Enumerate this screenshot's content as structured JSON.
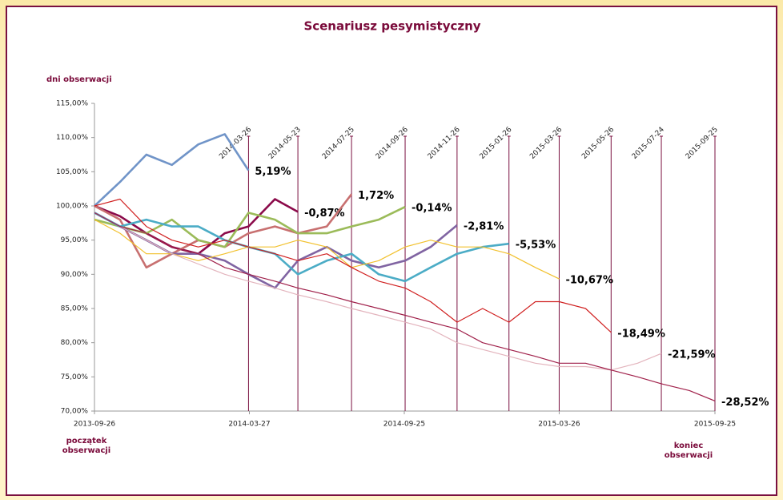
{
  "chart_data": {
    "type": "line",
    "title": "Scenariusz pesymistyczny",
    "y_axis_label": "dni obserwacji",
    "start_label": [
      "początek",
      "obserwacji"
    ],
    "end_label": [
      "koniec",
      "obserwacji"
    ],
    "xlim": [
      "2013-09-26",
      "2015-09-25"
    ],
    "xticks": [
      "2013-09-26",
      "2014-03-27",
      "2014-09-25",
      "2015-03-26",
      "2015-09-25"
    ],
    "ylim": [
      70,
      115
    ],
    "yticks": [
      {
        "value": 70,
        "label": "70,00%"
      },
      {
        "value": 75,
        "label": "75,00%"
      },
      {
        "value": 80,
        "label": "80,00%"
      },
      {
        "value": 85,
        "label": "85,00%"
      },
      {
        "value": 90,
        "label": "90,00%"
      },
      {
        "value": 95,
        "label": "95,00%"
      },
      {
        "value": 100,
        "label": "100,00%"
      },
      {
        "value": 105,
        "label": "105,00%"
      },
      {
        "value": 110,
        "label": "110,00%"
      },
      {
        "value": 115,
        "label": "115,00%"
      }
    ],
    "grid": false,
    "markers": [
      "2014-03-26",
      "2014-05-23",
      "2014-07-25",
      "2014-09-26",
      "2014-11-26",
      "2015-01-26",
      "2015-03-26",
      "2015-05-26",
      "2015-07-24",
      "2015-09-25"
    ],
    "x": [
      "2013-09-26",
      "2013-10-26",
      "2013-11-26",
      "2013-12-26",
      "2014-01-26",
      "2014-02-26",
      "2014-03-26",
      "2014-04-26",
      "2014-05-23",
      "2014-06-26",
      "2014-07-25",
      "2014-08-26",
      "2014-09-26",
      "2014-10-26",
      "2014-11-26",
      "2014-12-26",
      "2015-01-26",
      "2015-02-26",
      "2015-03-26",
      "2015-04-26",
      "2015-05-26",
      "2015-06-26",
      "2015-07-24",
      "2015-08-26",
      "2015-09-25"
    ],
    "series": [
      {
        "color": "#7094c8",
        "result": {
          "value": 5.19,
          "label": "5,19%"
        },
        "values": [
          100,
          103.5,
          107.5,
          106,
          109,
          110.5,
          105.19,
          null,
          null,
          null,
          null,
          null,
          null,
          null,
          null,
          null,
          null,
          null,
          null,
          null,
          null,
          null,
          null,
          null,
          null
        ]
      },
      {
        "color": "#8b0a4a",
        "result": {
          "value": -0.87,
          "label": "-0,87%"
        },
        "values": [
          100,
          98.5,
          96,
          94,
          93,
          96,
          97,
          101,
          99.13,
          null,
          null,
          null,
          null,
          null,
          null,
          null,
          null,
          null,
          null,
          null,
          null,
          null,
          null,
          null,
          null
        ]
      },
      {
        "color": "#c87070",
        "result": {
          "value": 1.72,
          "label": "1,72%"
        },
        "values": [
          100,
          98,
          91,
          93,
          95,
          94,
          96,
          97,
          96,
          97,
          101.72,
          null,
          null,
          null,
          null,
          null,
          null,
          null,
          null,
          null,
          null,
          null,
          null,
          null,
          null
        ]
      },
      {
        "color": "#9bbb59",
        "result": {
          "value": -0.14,
          "label": "-0,14%"
        },
        "values": [
          98,
          97,
          96,
          98,
          95,
          94,
          99,
          98,
          96,
          96,
          97,
          98,
          99.86,
          null,
          null,
          null,
          null,
          null,
          null,
          null,
          null,
          null,
          null,
          null,
          null
        ]
      },
      {
        "color": "#8064a2",
        "result": {
          "value": -2.81,
          "label": "-2,81%"
        },
        "values": [
          99,
          97,
          95,
          93,
          93,
          92,
          90,
          88,
          92,
          94,
          92,
          91,
          92,
          94,
          97.19,
          null,
          null,
          null,
          null,
          null,
          null,
          null,
          null,
          null,
          null
        ]
      },
      {
        "color": "#4bacc6",
        "result": {
          "value": -5.53,
          "label": "-5,53%"
        },
        "values": [
          99,
          97,
          98,
          97,
          97,
          95,
          94,
          93,
          90,
          92,
          93,
          90,
          89,
          91,
          93,
          94,
          94.47,
          null,
          null,
          null,
          null,
          null,
          null,
          null,
          null
        ]
      },
      {
        "color": "#f2c12e",
        "result": {
          "value": -10.67,
          "label": "-10,67%"
        },
        "values": [
          98,
          96,
          93,
          93,
          92,
          93,
          94,
          94,
          95,
          94,
          91,
          92,
          94,
          95,
          94,
          94,
          93,
          91,
          89.33,
          null,
          null,
          null,
          null,
          null,
          null
        ]
      },
      {
        "color": "#d02020",
        "result": {
          "value": -18.49,
          "label": "-18,49%"
        },
        "values": [
          100,
          101,
          97,
          95,
          94,
          95,
          94,
          93,
          92,
          93,
          91,
          89,
          88,
          86,
          83,
          85,
          83,
          86,
          86,
          85,
          81.51,
          null,
          null,
          null,
          null
        ]
      },
      {
        "color": "#e3b4bd",
        "result": {
          "value": -21.59,
          "label": "-21,59%"
        },
        "values": [
          99,
          97,
          95,
          93,
          91.5,
          90,
          89,
          88,
          87,
          86,
          85,
          84,
          83,
          82,
          80,
          79,
          78,
          77,
          76.5,
          76.5,
          76,
          77,
          78.41,
          null,
          null
        ]
      },
      {
        "color": "#a0204a",
        "result": {
          "value": -28.52,
          "label": "-28,52%"
        },
        "values": [
          99,
          97,
          96,
          94,
          93,
          91,
          90,
          89,
          88,
          87,
          86,
          85,
          84,
          83,
          82,
          80,
          79,
          78,
          77,
          77,
          76,
          75,
          74,
          73,
          71.48
        ]
      }
    ]
  }
}
